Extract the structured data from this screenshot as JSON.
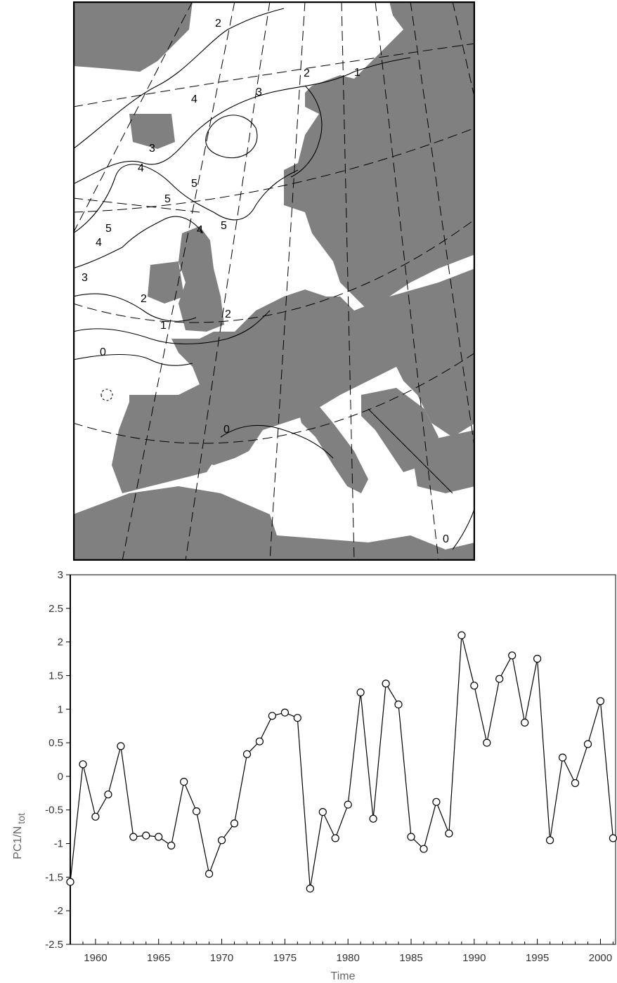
{
  "map": {
    "contour_labels": [
      "2",
      "2",
      "1",
      "3",
      "4",
      "3",
      "4",
      "5",
      "5",
      "5",
      "4",
      "5",
      "4",
      "3",
      "2",
      "2",
      "1",
      "0",
      "0",
      "0"
    ]
  },
  "chart_data": {
    "type": "line",
    "x": [
      1958,
      1959,
      1960,
      1961,
      1962,
      1963,
      1964,
      1965,
      1966,
      1967,
      1968,
      1969,
      1970,
      1971,
      1972,
      1973,
      1974,
      1975,
      1976,
      1977,
      1978,
      1979,
      1980,
      1981,
      1982,
      1983,
      1984,
      1985,
      1986,
      1987,
      1988,
      1989,
      1990,
      1991,
      1992,
      1993,
      1994,
      1995,
      1996,
      1997,
      1998,
      1999,
      2000,
      2001
    ],
    "series": [
      {
        "values": [
          -1.57,
          0.18,
          -0.6,
          -0.27,
          0.45,
          -0.9,
          -0.88,
          -0.9,
          -1.03,
          -0.08,
          -0.52,
          -1.45,
          -0.95,
          -0.7,
          0.33,
          0.52,
          0.9,
          0.95,
          0.87,
          -1.67,
          -0.53,
          -0.92,
          -0.42,
          1.25,
          -0.63,
          1.38,
          1.07,
          -0.9,
          -1.08,
          -0.38,
          -0.85,
          2.1,
          1.35,
          0.5,
          1.45,
          1.8,
          0.8,
          1.75,
          -0.95,
          0.28,
          -0.1,
          0.48,
          1.12,
          -0.92
        ]
      }
    ],
    "xlabel": "Time",
    "ylabel_main": "PC1/N",
    "ylabel_sub": "tot",
    "xlim": [
      1958,
      2001.2
    ],
    "ylim": [
      -2.5,
      3
    ],
    "xticks": [
      "1960",
      "1965",
      "1970",
      "1975",
      "1980",
      "1985",
      "1990",
      "1995",
      "2000"
    ],
    "yticks": [
      "3",
      "2.5",
      "2",
      "1.5",
      "1",
      "0.5",
      "0",
      "-0.5",
      "-1",
      "-1.5",
      "-2",
      "-2.5"
    ],
    "grid": false,
    "colors": {
      "line": "#000000",
      "marker_fill": "#ffffff",
      "land": "#808080"
    }
  }
}
